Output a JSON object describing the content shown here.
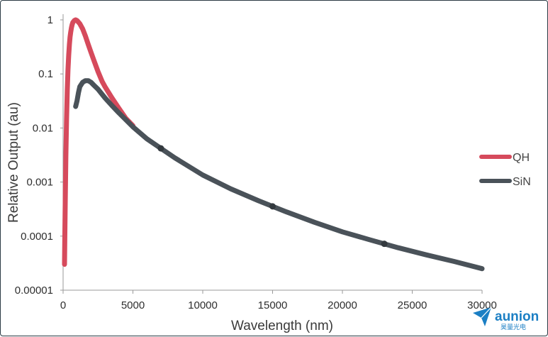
{
  "chart_data": {
    "type": "line",
    "title": "",
    "xlabel": "Wavelength (nm)",
    "ylabel": "Relative Output (au)",
    "xlim": [
      0,
      30000
    ],
    "ylim": [
      1e-05,
      1
    ],
    "yscale": "log",
    "x_ticks": [
      "0",
      "5000",
      "10000",
      "15000",
      "20000",
      "25000",
      "30000"
    ],
    "y_ticks": [
      "1",
      "0.1",
      "0.01",
      "0.001",
      "0.0001",
      "0.00001"
    ],
    "grid": false,
    "legend_position": "right",
    "series": [
      {
        "name": "QH",
        "color": "#d64a5c",
        "x": [
          100,
          120,
          150,
          200,
          250,
          300,
          350,
          400,
          450,
          500,
          550,
          600,
          650,
          700,
          800,
          900,
          1000,
          1200,
          1400,
          1600,
          1800,
          2000,
          2200,
          2500,
          2800,
          3000,
          3500,
          4000,
          4500,
          5000
        ],
        "y": [
          3e-05,
          9e-05,
          0.0004,
          0.003,
          0.015,
          0.05,
          0.12,
          0.22,
          0.35,
          0.48,
          0.6,
          0.72,
          0.82,
          0.9,
          0.97,
          1.0,
          0.97,
          0.85,
          0.68,
          0.5,
          0.35,
          0.25,
          0.18,
          0.11,
          0.072,
          0.058,
          0.036,
          0.023,
          0.015,
          0.011
        ]
      },
      {
        "name": "SiN",
        "color": "#4a5259",
        "x": [
          900,
          1000,
          1100,
          1200,
          1400,
          1600,
          1800,
          2000,
          2200,
          2500,
          3000,
          3500,
          4000,
          5000,
          6000,
          7000,
          8000,
          10000,
          12000,
          14000,
          16000,
          18000,
          20000,
          22000,
          24000,
          26000,
          28000,
          30000
        ],
        "y": [
          0.025,
          0.032,
          0.045,
          0.058,
          0.07,
          0.075,
          0.075,
          0.07,
          0.062,
          0.052,
          0.036,
          0.026,
          0.019,
          0.0105,
          0.0063,
          0.0042,
          0.0028,
          0.00135,
          0.00075,
          0.00045,
          0.00028,
          0.00018,
          0.00012,
          8.5e-05,
          6.1e-05,
          4.5e-05,
          3.4e-05,
          2.5e-05
        ]
      }
    ]
  },
  "brand": {
    "name": "aunion",
    "subtitle": "昊量光电"
  }
}
